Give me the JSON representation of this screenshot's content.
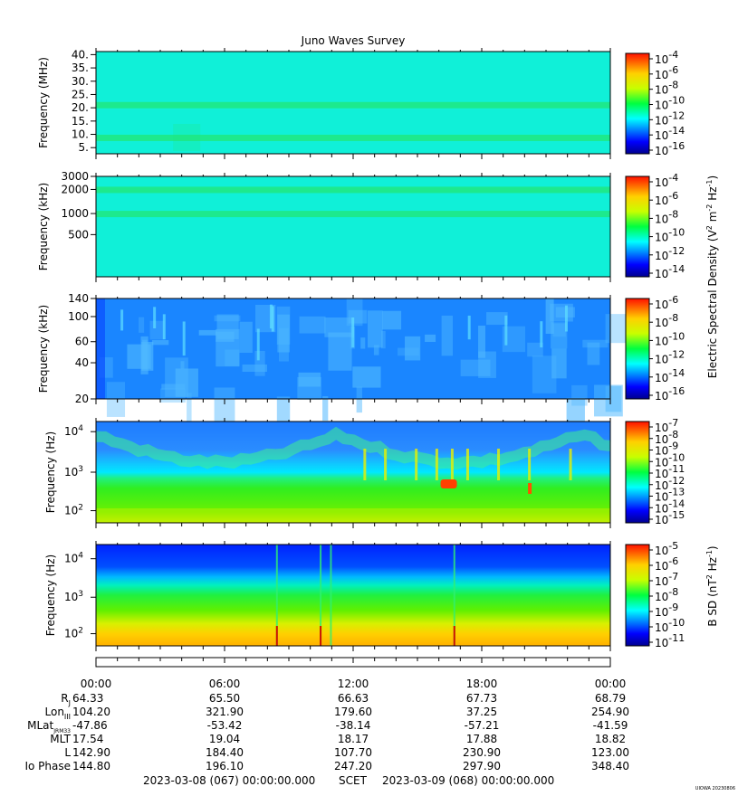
{
  "title": "Juno Waves Survey",
  "colors": {
    "background": "#ffffff",
    "axis": "#000000"
  },
  "panels": [
    {
      "id": "hfr-mhz",
      "ylabel": "Frequency (MHz)",
      "yticks": [
        "40.",
        "35.",
        "30.",
        "25.",
        "20.",
        "15.",
        "10.",
        "5."
      ],
      "colorbar_exponents": [
        "-4",
        "-6",
        "-8",
        "-10",
        "-12",
        "-14",
        "-16"
      ],
      "base_color": "cyan",
      "bands": [
        {
          "at": 0.52,
          "color": "green"
        },
        {
          "at": 0.84,
          "color": "green"
        }
      ]
    },
    {
      "id": "hfr-khz",
      "ylabel": "Frequency (kHz)",
      "yticks": [
        "3000",
        "2000",
        "1000",
        "500"
      ],
      "colorbar_exponents": [
        "-4",
        "-6",
        "-8",
        "-10",
        "-12",
        "-14"
      ],
      "base_color": "cyan",
      "bands": [
        {
          "at": 0.13,
          "color": "green"
        },
        {
          "at": 0.37,
          "color": "green"
        }
      ]
    },
    {
      "id": "lfr-khz",
      "ylabel": "Frequency (kHz)",
      "yticks": [
        "140",
        "100",
        "60",
        "40",
        "20"
      ],
      "colorbar_exponents": [
        "-6",
        "-8",
        "-10",
        "-12",
        "-14",
        "-16"
      ],
      "base_color": "blue",
      "bands": []
    },
    {
      "id": "lfr-hz",
      "ylabel": "Frequency (Hz)",
      "yticks": [
        "10",
        "10",
        "10"
      ],
      "yticks_exp": [
        "4",
        "3",
        "2"
      ],
      "colorbar_exponents": [
        "-7",
        "-8",
        "-9",
        "-10",
        "-11",
        "-12",
        "-13",
        "-14",
        "-15"
      ],
      "base_color": "mixed",
      "bands": []
    },
    {
      "id": "bsd-hz",
      "ylabel": "Frequency (Hz)",
      "yticks": [
        "10",
        "10",
        "10"
      ],
      "yticks_exp": [
        "4",
        "3",
        "2"
      ],
      "colorbar_exponents": [
        "-5",
        "-6",
        "-7",
        "-8",
        "-9",
        "-10",
        "-11"
      ],
      "base_color": "gradient",
      "bands": []
    }
  ],
  "colorbar_labels": {
    "electric": "Electric Spectral Density (V",
    "electric_unit_exp": "2",
    "electric_mid": " m",
    "electric_mid_exp": "-2",
    "electric_end": " Hz",
    "electric_end_exp": "-1",
    "electric_close": ")",
    "magnetic": "B SD (nT",
    "magnetic_exp1": "2",
    "magnetic_mid": " Hz",
    "magnetic_exp2": "-1",
    "magnetic_close": ")"
  },
  "colorbar_base": "10",
  "chart_data": {
    "type": "heatmap",
    "title": "Juno Waves Survey",
    "x_ticks": [
      "00:00",
      "06:00",
      "12:00",
      "18:00",
      "00:00"
    ],
    "ephemeris": {
      "rows": [
        {
          "label": "R",
          "sub": "J",
          "values": [
            "64.33",
            "65.50",
            "66.63",
            "67.73",
            "68.79"
          ]
        },
        {
          "label": "Lon",
          "sub": "III",
          "values": [
            "104.20",
            "321.90",
            "179.60",
            "37.25",
            "254.90"
          ]
        },
        {
          "label": "MLat",
          "sub": "JRM33",
          "values": [
            "-47.86",
            "-53.42",
            "-38.14",
            "-57.21",
            "-41.59"
          ]
        },
        {
          "label": "MLT",
          "sub": "",
          "values": [
            "17.54",
            "19.04",
            "18.17",
            "17.88",
            "18.82"
          ]
        },
        {
          "label": "L",
          "sub": "",
          "values": [
            "142.90",
            "184.40",
            "107.70",
            "230.90",
            "123.00"
          ]
        },
        {
          "label": "Io Phase",
          "sub": "",
          "values": [
            "144.80",
            "196.10",
            "247.20",
            "297.90",
            "348.40"
          ]
        }
      ]
    },
    "time_range": {
      "start": "2023-03-08 (067) 00:00:00.000",
      "label": "SCET",
      "end": "2023-03-09 (068) 00:00:00.000"
    },
    "credit": "UIOWA 20230806"
  }
}
